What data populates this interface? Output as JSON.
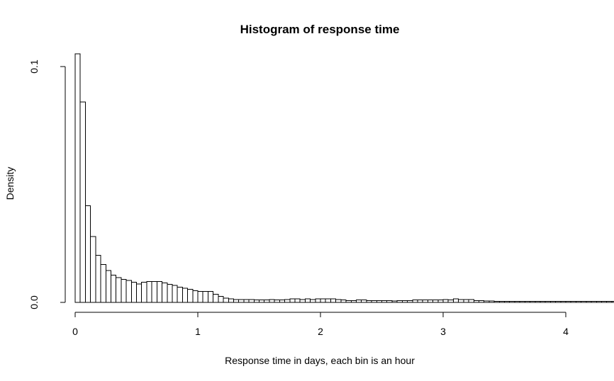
{
  "chart_data": {
    "type": "bar",
    "title": "Histogram of response time",
    "xlabel": "Response time in days, each bin is an hour",
    "ylabel": "Density",
    "xlim": [
      0,
      4
    ],
    "ylim": [
      0,
      0.1
    ],
    "x_ticks": [
      0,
      1,
      2,
      3,
      4
    ],
    "x_tick_labels": [
      "0",
      "1",
      "2",
      "3",
      "4"
    ],
    "y_ticks": [
      0,
      0.1
    ],
    "y_tick_labels": [
      "0.0",
      "0.1"
    ],
    "bin_width": 0.0416667,
    "bins_start": 0,
    "values": [
      0.106,
      0.085,
      0.041,
      0.028,
      0.02,
      0.016,
      0.0135,
      0.0115,
      0.0105,
      0.0098,
      0.0093,
      0.0085,
      0.0078,
      0.0085,
      0.0088,
      0.0088,
      0.0088,
      0.0082,
      0.0077,
      0.0072,
      0.0065,
      0.006,
      0.0055,
      0.005,
      0.0047,
      0.0047,
      0.0047,
      0.0035,
      0.0025,
      0.0018,
      0.0015,
      0.0012,
      0.0012,
      0.0012,
      0.0012,
      0.001,
      0.001,
      0.001,
      0.0012,
      0.001,
      0.001,
      0.0012,
      0.0015,
      0.0015,
      0.0012,
      0.0015,
      0.0012,
      0.0015,
      0.0015,
      0.0015,
      0.0015,
      0.0012,
      0.001,
      0.0008,
      0.0008,
      0.001,
      0.001,
      0.0008,
      0.0008,
      0.0008,
      0.0008,
      0.0008,
      0.0006,
      0.0008,
      0.0008,
      0.0008,
      0.001,
      0.001,
      0.001,
      0.001,
      0.001,
      0.001,
      0.0012,
      0.001,
      0.0015,
      0.0012,
      0.0012,
      0.0012,
      0.0008,
      0.0008,
      0.0006,
      0.0006,
      0.0005,
      0.0005,
      0.0005,
      0.0005,
      0.0005,
      0.0004,
      0.0005,
      0.0005,
      0.0005,
      0.0005,
      0.0005,
      0.0005,
      0.0004,
      0.0004,
      0.0004,
      0.0004,
      0.0004,
      0.0004,
      0.0004,
      0.0004,
      0.0004,
      0.0004,
      0.0005,
      0.0005,
      0.0006,
      0.0008,
      0.0008,
      0.0008,
      0.0008,
      0.0008,
      0.0008,
      0.0008,
      0.0008,
      0.0008
    ]
  }
}
